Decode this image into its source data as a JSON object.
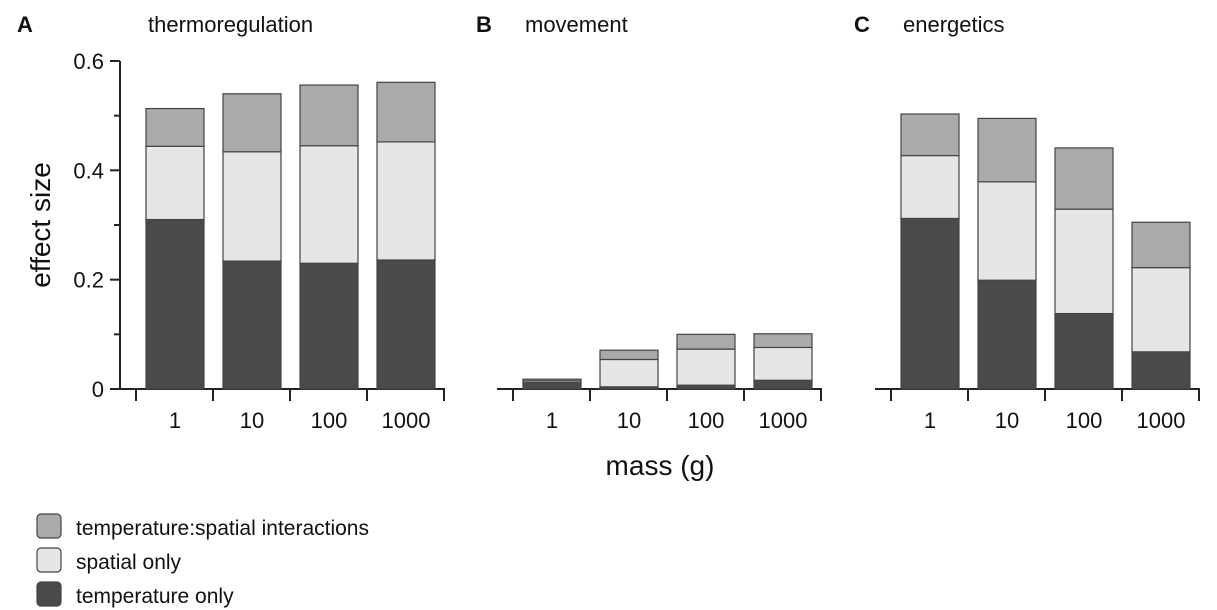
{
  "chart_data": {
    "type": "bar",
    "stacked": true,
    "ylabel": "effect size",
    "xlabel": "mass (g)",
    "ylim": [
      0,
      0.6
    ],
    "yticks": [
      0,
      0.2,
      0.4,
      0.6
    ],
    "ytick_labels": [
      "0",
      "0.2",
      "0.4",
      "0.6"
    ],
    "categories": [
      "1",
      "10",
      "100",
      "1000"
    ],
    "colors": {
      "temperature only": "#4a4a4a",
      "spatial only": "#e6e6e6",
      "temperature:spatial interactions": "#aaaaaa"
    },
    "panels": [
      {
        "letter": "A",
        "title": "thermoregulation",
        "series": [
          {
            "name": "temperature only",
            "values": [
              0.31,
              0.234,
              0.23,
              0.236
            ]
          },
          {
            "name": "spatial only",
            "values": [
              0.134,
              0.2,
              0.215,
              0.216
            ]
          },
          {
            "name": "temperature:spatial interactions",
            "values": [
              0.069,
              0.106,
              0.111,
              0.109
            ]
          }
        ]
      },
      {
        "letter": "B",
        "title": "movement",
        "series": [
          {
            "name": "temperature only",
            "values": [
              0.012,
              0.004,
              0.007,
              0.016
            ]
          },
          {
            "name": "spatial only",
            "values": [
              0.003,
              0.05,
              0.066,
              0.06
            ]
          },
          {
            "name": "temperature:spatial interactions",
            "values": [
              0.003,
              0.017,
              0.027,
              0.025
            ]
          }
        ]
      },
      {
        "letter": "C",
        "title": "energetics",
        "series": [
          {
            "name": "temperature only",
            "values": [
              0.312,
              0.199,
              0.138,
              0.068
            ]
          },
          {
            "name": "spatial only",
            "values": [
              0.115,
              0.18,
              0.191,
              0.154
            ]
          },
          {
            "name": "temperature:spatial interactions",
            "values": [
              0.076,
              0.116,
              0.112,
              0.083
            ]
          }
        ]
      }
    ],
    "legend": [
      "temperature:spatial interactions",
      "spatial only",
      "temperature only"
    ]
  }
}
